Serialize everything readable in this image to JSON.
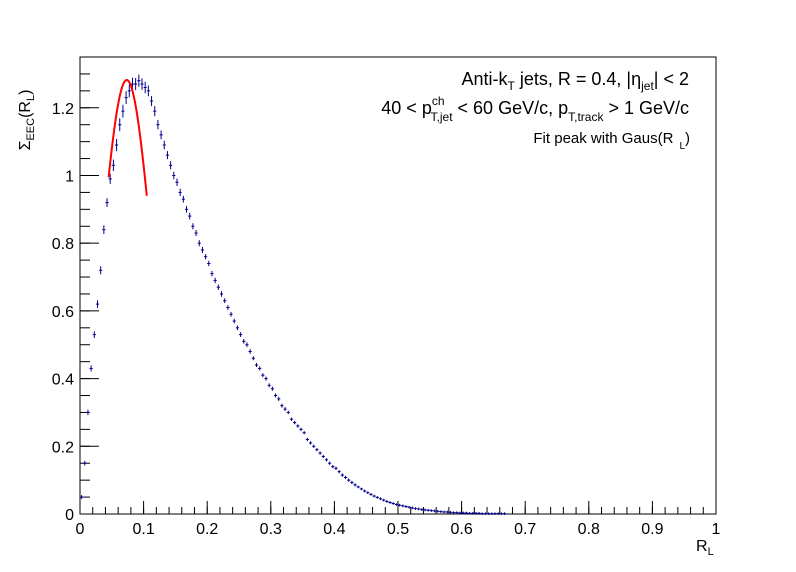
{
  "chart_data": {
    "type": "scatter",
    "xlabel": "R",
    "xlabel_sub": "L",
    "ylabel": "Σ",
    "ylabel_sub": "EEC",
    "ylabel_suffix": "(R",
    "ylabel_suffix_sub": "L",
    "ylabel_close": ")",
    "xlim": [
      0,
      1
    ],
    "ylim": [
      0,
      1.35
    ],
    "x_ticks": [
      0,
      0.1,
      0.2,
      0.3,
      0.4,
      0.5,
      0.6,
      0.7,
      0.8,
      0.9,
      1
    ],
    "x_tick_labels": [
      "0",
      "0.1",
      "0.2",
      "0.3",
      "0.4",
      "0.5",
      "0.6",
      "0.7",
      "0.8",
      "0.9",
      "1"
    ],
    "y_ticks": [
      0,
      0.2,
      0.4,
      0.6,
      0.8,
      1,
      1.2
    ],
    "y_tick_labels": [
      "0",
      "0.2",
      "0.4",
      "0.6",
      "0.8",
      "1",
      "1.2"
    ],
    "grid": false,
    "annotations": {
      "line1": {
        "a": "Anti-k",
        "a_sub": "T",
        "b": " jets, R = 0.4, |η",
        "b_sub": "jet",
        "c": "| < 2"
      },
      "line2": {
        "a": "40 < p",
        "a_sup": "ch",
        "a_sub": "T,jet",
        "b": " < 60 GeV/c,  p",
        "b_sub": "T,track",
        "c": " > 1 GeV/c"
      },
      "line3": {
        "a": "Fit peak with Gaus(R",
        "a_sub": "L",
        "b": ")"
      }
    },
    "series": [
      {
        "color": "#00008b",
        "marker": "error-bar",
        "x": [
          0.0025,
          0.0075,
          0.0125,
          0.0175,
          0.0225,
          0.0275,
          0.0325,
          0.0375,
          0.0425,
          0.0475,
          0.0525,
          0.0575,
          0.0625,
          0.0675,
          0.0725,
          0.0775,
          0.0825,
          0.0875,
          0.0925,
          0.0975,
          0.1025,
          0.1075,
          0.1125,
          0.1175,
          0.1225,
          0.1275,
          0.1325,
          0.1375,
          0.1425,
          0.1475,
          0.1525,
          0.1575,
          0.1625,
          0.1675,
          0.1725,
          0.1775,
          0.1825,
          0.1875,
          0.1925,
          0.1975,
          0.2025,
          0.2075,
          0.2125,
          0.2175,
          0.2225,
          0.2275,
          0.2325,
          0.2375,
          0.2425,
          0.2475,
          0.2525,
          0.2575,
          0.2625,
          0.2675,
          0.2725,
          0.2775,
          0.2825,
          0.2875,
          0.2925,
          0.2975,
          0.3025,
          0.3075,
          0.3125,
          0.3175,
          0.3225,
          0.3275,
          0.3325,
          0.3375,
          0.3425,
          0.3475,
          0.3525,
          0.3575,
          0.3625,
          0.3675,
          0.3725,
          0.3775,
          0.3825,
          0.3875,
          0.3925,
          0.3975,
          0.4025,
          0.4075,
          0.4125,
          0.4175,
          0.4225,
          0.4275,
          0.4325,
          0.4375,
          0.4425,
          0.4475,
          0.4525,
          0.4575,
          0.4625,
          0.4675,
          0.4725,
          0.4775,
          0.4825,
          0.4875,
          0.4925,
          0.4975,
          0.5025,
          0.5075,
          0.5125,
          0.5175,
          0.5225,
          0.5275,
          0.5325,
          0.5375,
          0.5425,
          0.5475,
          0.5525,
          0.5575,
          0.5625,
          0.5675,
          0.5725,
          0.5775,
          0.5825,
          0.5875,
          0.5925,
          0.5975,
          0.6025,
          0.6075,
          0.6125,
          0.6175,
          0.6225,
          0.6275,
          0.6325,
          0.6375,
          0.6425,
          0.6475,
          0.6525,
          0.6575,
          0.6625,
          0.6675
        ],
        "y": [
          0.05,
          0.15,
          0.3,
          0.43,
          0.53,
          0.62,
          0.72,
          0.84,
          0.92,
          0.99,
          1.03,
          1.09,
          1.15,
          1.19,
          1.23,
          1.25,
          1.27,
          1.27,
          1.28,
          1.27,
          1.26,
          1.25,
          1.22,
          1.19,
          1.15,
          1.12,
          1.09,
          1.06,
          1.03,
          1.0,
          0.98,
          0.95,
          0.93,
          0.9,
          0.88,
          0.85,
          0.83,
          0.8,
          0.78,
          0.76,
          0.74,
          0.71,
          0.69,
          0.67,
          0.65,
          0.63,
          0.61,
          0.59,
          0.57,
          0.55,
          0.53,
          0.51,
          0.5,
          0.48,
          0.46,
          0.44,
          0.43,
          0.41,
          0.4,
          0.38,
          0.37,
          0.35,
          0.34,
          0.32,
          0.31,
          0.3,
          0.28,
          0.27,
          0.26,
          0.25,
          0.24,
          0.22,
          0.21,
          0.2,
          0.19,
          0.18,
          0.17,
          0.16,
          0.15,
          0.14,
          0.135,
          0.125,
          0.115,
          0.108,
          0.1,
          0.093,
          0.086,
          0.08,
          0.074,
          0.068,
          0.063,
          0.058,
          0.053,
          0.049,
          0.045,
          0.041,
          0.037,
          0.034,
          0.031,
          0.028,
          0.026,
          0.024,
          0.022,
          0.02,
          0.018,
          0.016,
          0.015,
          0.013,
          0.012,
          0.011,
          0.01,
          0.009,
          0.008,
          0.007,
          0.006,
          0.006,
          0.005,
          0.004,
          0.004,
          0.003,
          0.003,
          0.003,
          0.002,
          0.002,
          0.002,
          0.002,
          0.001,
          0.001,
          0.001,
          0.001,
          0.001,
          0.001,
          0.001,
          0.001
        ],
        "yerr": [
          0.003,
          0.004,
          0.005,
          0.006,
          0.007,
          0.008,
          0.009,
          0.01,
          0.01,
          0.012,
          0.014,
          0.015,
          0.016,
          0.016,
          0.016,
          0.016,
          0.016,
          0.015,
          0.015,
          0.014,
          0.014,
          0.013,
          0.012,
          0.012,
          0.011,
          0.01,
          0.01,
          0.009,
          0.009,
          0.008,
          0.008,
          0.008,
          0.007,
          0.007,
          0.007,
          0.006,
          0.006,
          0.006,
          0.006,
          0.005,
          0.005,
          0.005,
          0.005,
          0.005,
          0.005,
          0.004,
          0.004,
          0.004,
          0.004,
          0.004,
          0.004,
          0.004,
          0.004,
          0.004,
          0.003,
          0.003,
          0.003,
          0.003,
          0.003,
          0.003,
          0.003,
          0.003,
          0.003,
          0.003,
          0.003,
          0.002,
          0.002,
          0.002,
          0.002,
          0.002,
          0.002,
          0.002,
          0.002,
          0.002,
          0.002,
          0.002,
          0.002,
          0.002,
          0.002,
          0.002,
          0.002,
          0.002,
          0.002,
          0.002,
          0.002,
          0.002,
          0.002,
          0.001,
          0.001,
          0.001,
          0.001,
          0.001,
          0.001,
          0.001,
          0.001,
          0.001,
          0.001,
          0.001,
          0.001,
          0.001,
          0.001,
          0.001,
          0.001,
          0.001,
          0.001,
          0.001,
          0.001,
          0.001,
          0.001,
          0.001,
          0.001,
          0.001,
          0.001,
          0.001,
          0.001,
          0.001,
          0.001,
          0.001,
          0.001,
          0.001,
          0.001,
          0.001,
          0.001,
          0.001,
          0.001,
          0.001,
          0.001,
          0.001,
          0.001,
          0.001,
          0.001,
          0.001,
          0.001,
          0.001
        ]
      }
    ],
    "fit": {
      "color": "#ff0000",
      "type": "gaussian",
      "x_range": [
        0.045,
        0.105
      ],
      "amplitude": 1.282,
      "mean": 0.0735,
      "sigma": 0.04
    }
  }
}
